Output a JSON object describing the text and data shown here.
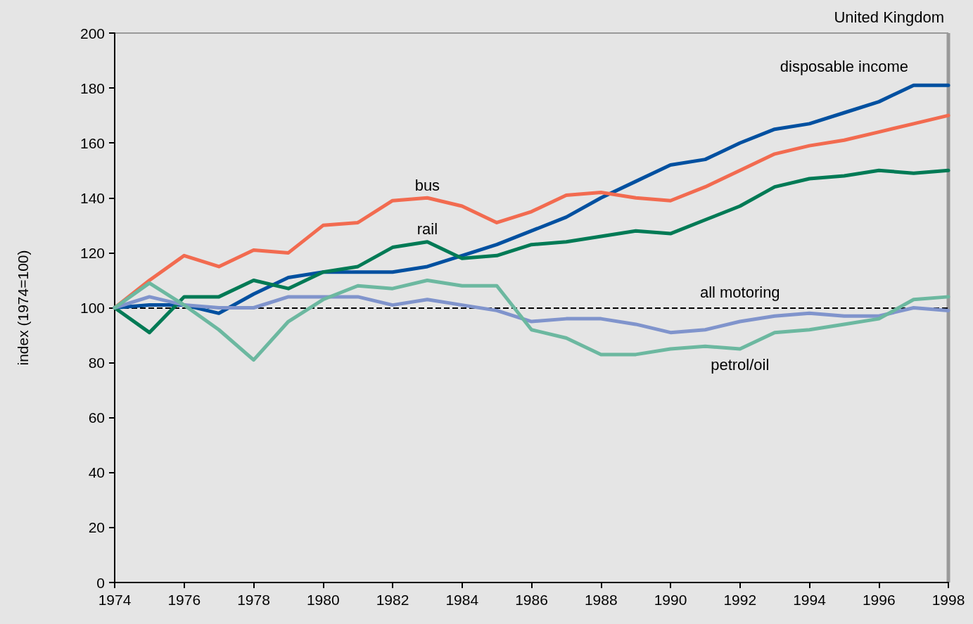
{
  "chart_data": {
    "type": "line",
    "ylabel": "index (1974=100)",
    "annotations": [
      "United Kingdom"
    ],
    "x": [
      1974,
      1975,
      1976,
      1977,
      1978,
      1979,
      1980,
      1981,
      1982,
      1983,
      1984,
      1985,
      1986,
      1987,
      1988,
      1989,
      1990,
      1991,
      1992,
      1993,
      1994,
      1995,
      1996,
      1997,
      1998
    ],
    "xlim": [
      1974,
      1998
    ],
    "xticks": [
      1974,
      1976,
      1978,
      1980,
      1982,
      1984,
      1986,
      1988,
      1990,
      1992,
      1994,
      1996,
      1998
    ],
    "ylim": [
      0,
      200
    ],
    "yticks": [
      0,
      20,
      40,
      60,
      80,
      100,
      120,
      140,
      160,
      180,
      200
    ],
    "grid": false,
    "legend": false,
    "marker": "none",
    "line_style": "solid",
    "ref_lines": [
      {
        "axis": "y",
        "value": 100,
        "color": "#000000",
        "line_style": "dashed"
      }
    ],
    "series": [
      {
        "name": "disposable income",
        "color": "#0050a0",
        "values": [
          100,
          101,
          101,
          98,
          105,
          111,
          113,
          113,
          113,
          115,
          119,
          123,
          128,
          133,
          140,
          146,
          152,
          154,
          160,
          165,
          167,
          171,
          175,
          181,
          181
        ]
      },
      {
        "name": "bus",
        "color": "#f26b50",
        "values": [
          100,
          110,
          119,
          115,
          121,
          120,
          130,
          131,
          139,
          140,
          137,
          131,
          135,
          141,
          142,
          140,
          139,
          144,
          150,
          156,
          159,
          161,
          164,
          167,
          170
        ]
      },
      {
        "name": "rail",
        "color": "#007a55",
        "values": [
          100,
          91,
          104,
          104,
          110,
          107,
          113,
          115,
          122,
          124,
          118,
          119,
          123,
          124,
          126,
          128,
          127,
          132,
          137,
          144,
          147,
          148,
          150,
          149,
          150
        ]
      },
      {
        "name": "all motoring",
        "color": "#8094cc",
        "values": [
          100,
          104,
          101,
          100,
          100,
          104,
          104,
          104,
          101,
          103,
          101,
          99,
          95,
          96,
          96,
          94,
          91,
          92,
          95,
          97,
          98,
          97,
          97,
          100,
          99
        ]
      },
      {
        "name": "petrol/oil",
        "color": "#6cb8a0",
        "values": [
          100,
          109,
          101,
          92,
          81,
          95,
          103,
          108,
          107,
          110,
          108,
          108,
          92,
          89,
          83,
          83,
          85,
          86,
          85,
          91,
          92,
          94,
          96,
          103,
          104
        ]
      }
    ]
  }
}
